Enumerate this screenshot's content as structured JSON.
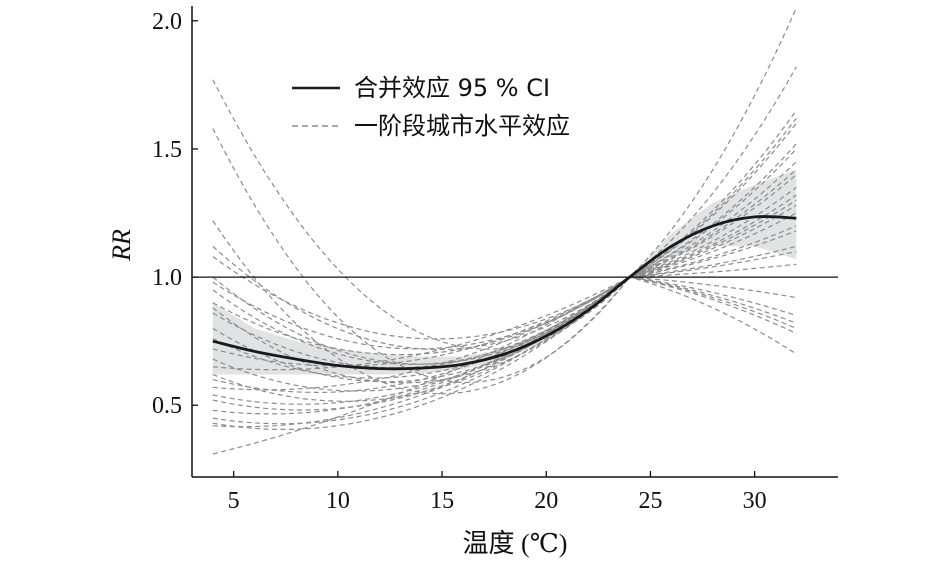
{
  "chart_data": {
    "type": "line",
    "xlabel": "温度 (℃)",
    "ylabel": "RR",
    "xlim": [
      3,
      34
    ],
    "ylim": [
      0.22,
      2.05
    ],
    "xticks": [
      5,
      10,
      15,
      20,
      25,
      30
    ],
    "yticks": [
      0.5,
      1.0,
      1.5,
      2.0
    ],
    "x_tick_labels": [
      "5",
      "10",
      "15",
      "20",
      "25",
      "30"
    ],
    "y_tick_labels": [
      "0.5",
      "1.0",
      "1.5",
      "2.0"
    ],
    "reference_line": 1.0,
    "legend": {
      "position": "top-left",
      "entries": [
        {
          "label": "合并效应 95 % CI",
          "style": "solid"
        },
        {
          "label": "一阶段城市水平效应",
          "style": "dashed"
        }
      ]
    },
    "pooled": {
      "x": [
        4,
        6,
        8,
        10,
        12,
        14,
        16,
        18,
        20,
        22,
        24,
        26,
        28,
        30,
        32
      ],
      "y": [
        0.75,
        0.71,
        0.68,
        0.655,
        0.643,
        0.645,
        0.66,
        0.7,
        0.77,
        0.87,
        1.0,
        1.12,
        1.2,
        1.235,
        1.23
      ],
      "lower": [
        0.62,
        0.62,
        0.62,
        0.62,
        0.62,
        0.625,
        0.64,
        0.68,
        0.75,
        0.86,
        1.0,
        1.08,
        1.12,
        1.12,
        1.07
      ],
      "upper": [
        0.9,
        0.8,
        0.75,
        0.72,
        0.7,
        0.69,
        0.69,
        0.72,
        0.79,
        0.88,
        1.0,
        1.17,
        1.29,
        1.36,
        1.42
      ]
    },
    "cities": [
      {
        "start": 1.77,
        "mid": 0.78,
        "end": 0.82
      },
      {
        "start": 1.58,
        "mid": 0.62,
        "end": 1.12
      },
      {
        "start": 1.22,
        "mid": 0.55,
        "end": 1.65
      },
      {
        "start": 1.12,
        "mid": 0.72,
        "end": 1.52
      },
      {
        "start": 1.08,
        "mid": 0.76,
        "end": 1.4
      },
      {
        "start": 0.98,
        "mid": 0.72,
        "end": 2.05
      },
      {
        "start": 0.95,
        "mid": 0.66,
        "end": 1.82
      },
      {
        "start": 0.9,
        "mid": 0.7,
        "end": 1.35
      },
      {
        "start": 0.86,
        "mid": 0.65,
        "end": 1.6
      },
      {
        "start": 0.8,
        "mid": 0.6,
        "end": 1.3
      },
      {
        "start": 0.76,
        "mid": 0.62,
        "end": 1.25
      },
      {
        "start": 0.72,
        "mid": 0.68,
        "end": 0.7
      },
      {
        "start": 0.68,
        "mid": 0.58,
        "end": 1.5
      },
      {
        "start": 0.65,
        "mid": 0.7,
        "end": 1.18
      },
      {
        "start": 0.62,
        "mid": 0.55,
        "end": 0.8
      },
      {
        "start": 0.6,
        "mid": 0.6,
        "end": 1.1
      },
      {
        "start": 0.57,
        "mid": 0.64,
        "end": 1.05
      },
      {
        "start": 0.54,
        "mid": 0.57,
        "end": 1.45
      },
      {
        "start": 0.52,
        "mid": 0.55,
        "end": 0.92
      },
      {
        "start": 0.48,
        "mid": 0.56,
        "end": 1.28
      },
      {
        "start": 0.45,
        "mid": 0.52,
        "end": 1.32
      },
      {
        "start": 0.43,
        "mid": 0.5,
        "end": 0.85
      },
      {
        "start": 0.42,
        "mid": 0.54,
        "end": 1.62
      },
      {
        "start": 0.31,
        "mid": 0.58,
        "end": 1.42
      },
      {
        "start": 1.0,
        "mid": 0.66,
        "end": 0.78
      },
      {
        "start": 0.88,
        "mid": 0.59,
        "end": 1.2
      }
    ],
    "colors": {
      "pooled": "#1a1a1a",
      "ci_band": "#dfe3e3",
      "cities": "#8c8c8c",
      "axis": "#111111"
    }
  }
}
